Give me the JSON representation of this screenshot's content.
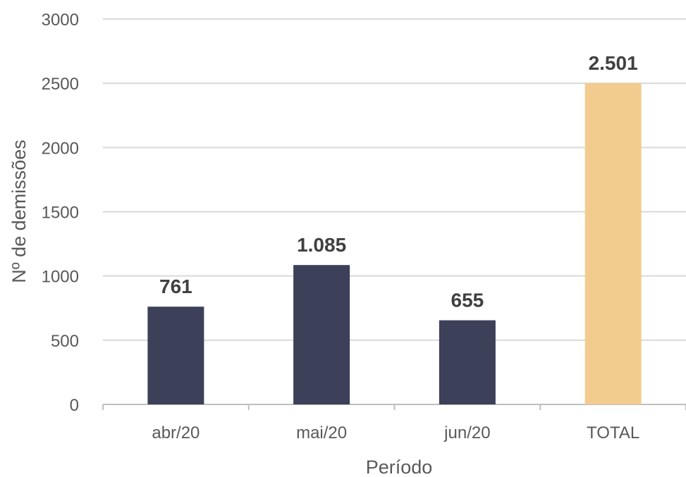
{
  "chart_data": {
    "type": "bar",
    "categories": [
      "abr/20",
      "mai/20",
      "jun/20",
      "TOTAL"
    ],
    "values": [
      761,
      1085,
      655,
      2501
    ],
    "data_labels": [
      "761",
      "1.085",
      "655",
      "2.501"
    ],
    "title": "",
    "xlabel": "Período",
    "ylabel": "Nº de demissões",
    "ylim": [
      0,
      3000
    ],
    "yticks": [
      0,
      500,
      1000,
      1500,
      2000,
      2500,
      3000
    ],
    "grid": true,
    "legend": "none",
    "colors": [
      "#3c4059",
      "#3c4059",
      "#3c4059",
      "#f2cc8f"
    ]
  }
}
